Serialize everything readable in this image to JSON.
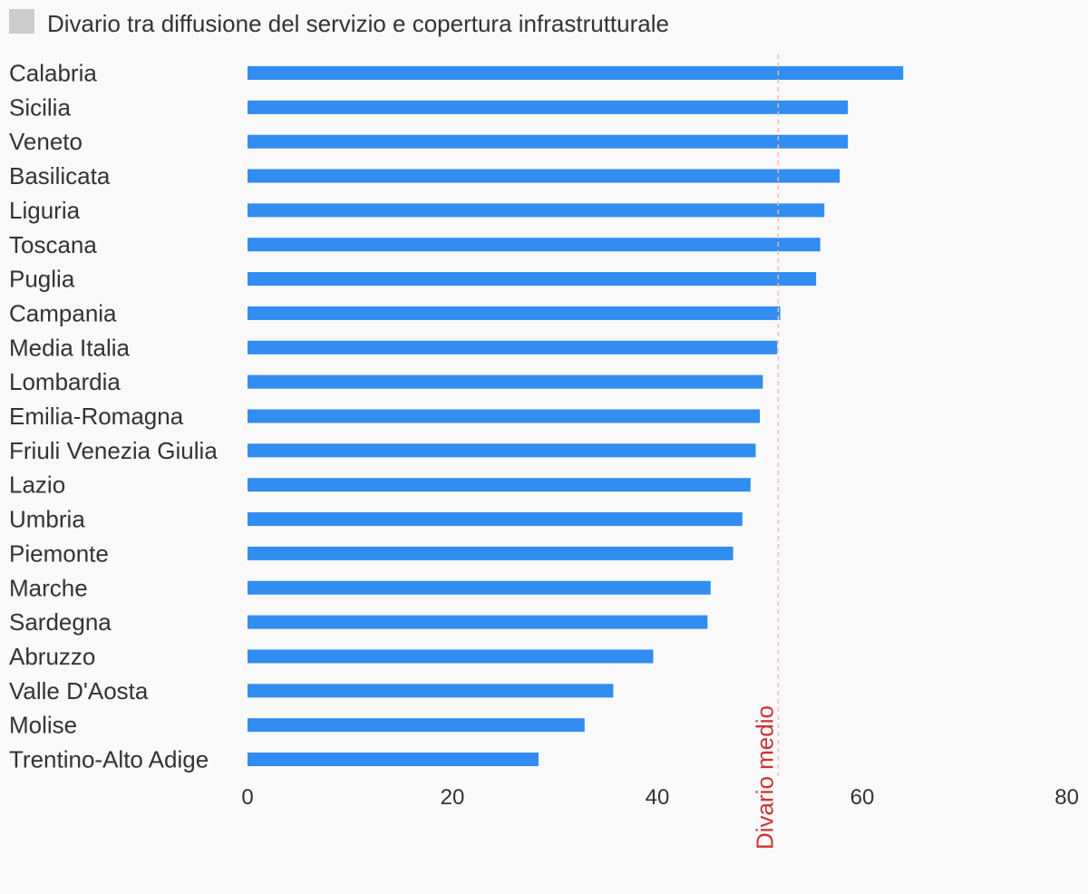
{
  "chart_data": {
    "type": "bar",
    "orientation": "horizontal",
    "legend": [
      {
        "name": "Divario tra diffusione del servizio e copertura infrastrutturale",
        "color": "#cccccc"
      }
    ],
    "bar_color": "#318def",
    "categories": [
      "Calabria",
      "Sicilia",
      "Veneto",
      "Basilicata",
      "Liguria",
      "Toscana",
      "Puglia",
      "Campania",
      "Media Italia",
      "Lombardia",
      "Emilia-Romagna",
      "Friuli Venezia Giulia",
      "Lazio",
      "Umbria",
      "Piemonte",
      "Marche",
      "Sardegna",
      "Abruzzo",
      "Valle D'Aosta",
      "Molise",
      "Trentino-Alto Adige"
    ],
    "values": [
      64.0,
      58.6,
      58.6,
      57.8,
      56.3,
      55.9,
      55.5,
      52.0,
      51.7,
      50.3,
      50.0,
      49.6,
      49.1,
      48.3,
      47.4,
      45.2,
      44.9,
      39.6,
      35.7,
      32.9,
      28.4
    ],
    "xlim": [
      0,
      80
    ],
    "xticks": [
      0,
      20,
      40,
      60,
      80
    ],
    "grid": false,
    "legend_position": "top-left",
    "reference_line": {
      "label": "Divario medio",
      "value": 51.8,
      "color": "#cc3333",
      "style": "dashed"
    }
  }
}
